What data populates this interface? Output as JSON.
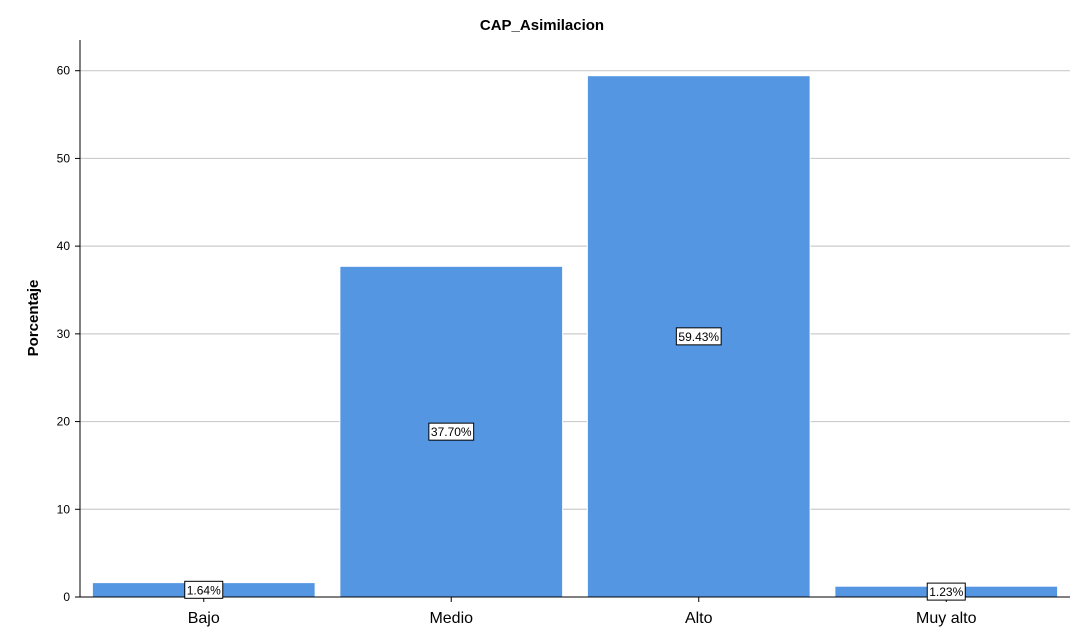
{
  "chart_data": {
    "type": "bar",
    "title": "CAP_Asimilacion",
    "xlabel": "",
    "ylabel": "Porcentaje",
    "categories": [
      "Bajo",
      "Medio",
      "Alto",
      "Muy alto"
    ],
    "values": [
      1.64,
      37.7,
      59.43,
      1.23
    ],
    "data_labels": [
      "1.64%",
      "37.70%",
      "59.43%",
      "1.23%"
    ],
    "yticks": [
      0,
      10,
      20,
      30,
      40,
      50,
      60
    ],
    "ylim": [
      0,
      63.5
    ],
    "grid": true,
    "bar_color": "#5596e3",
    "bar_edge_color": "#ffffff",
    "grid_color": "#cccccc"
  }
}
